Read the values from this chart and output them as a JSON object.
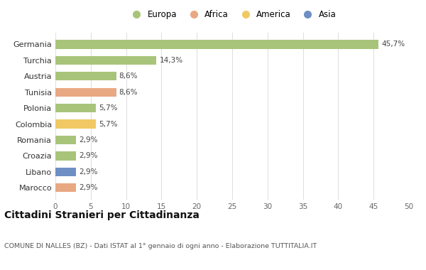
{
  "categories": [
    "Marocco",
    "Libano",
    "Croazia",
    "Romania",
    "Colombia",
    "Polonia",
    "Tunisia",
    "Austria",
    "Turchia",
    "Germania"
  ],
  "values": [
    2.9,
    2.9,
    2.9,
    2.9,
    5.7,
    5.7,
    8.6,
    8.6,
    14.3,
    45.7
  ],
  "labels": [
    "2,9%",
    "2,9%",
    "2,9%",
    "2,9%",
    "5,7%",
    "5,7%",
    "8,6%",
    "8,6%",
    "14,3%",
    "45,7%"
  ],
  "colors": [
    "#e8a882",
    "#6e8fc4",
    "#a8c47a",
    "#a8c47a",
    "#f0c965",
    "#a8c47a",
    "#e8a882",
    "#a8c47a",
    "#a8c47a",
    "#a8c47a"
  ],
  "legend_labels": [
    "Europa",
    "Africa",
    "America",
    "Asia"
  ],
  "legend_colors": [
    "#a8c47a",
    "#e8a882",
    "#f0c965",
    "#6e8fc4"
  ],
  "title": "Cittadini Stranieri per Cittadinanza",
  "subtitle": "COMUNE DI NALLES (BZ) - Dati ISTAT al 1° gennaio di ogni anno - Elaborazione TUTTITALIA.IT",
  "xlim": [
    0,
    50
  ],
  "xticks": [
    0,
    5,
    10,
    15,
    20,
    25,
    30,
    35,
    40,
    45,
    50
  ],
  "bg_color": "#ffffff",
  "grid_color": "#e0e0e0"
}
